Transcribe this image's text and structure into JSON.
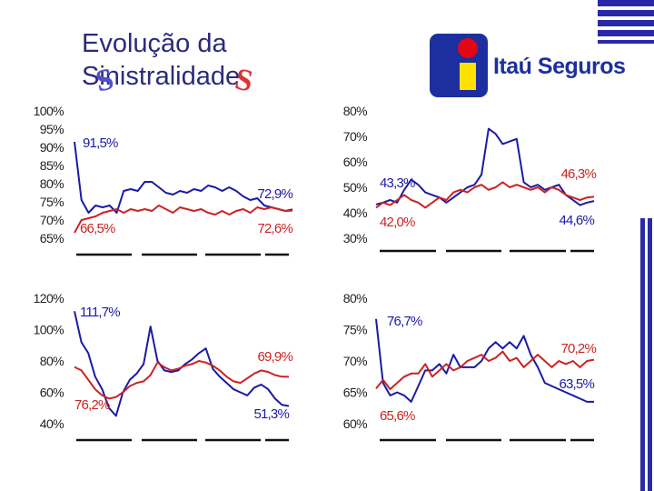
{
  "title": {
    "line1": "Evolução da",
    "line2": "Sinistralidade"
  },
  "logo": {
    "text": "Itaú Seguros"
  },
  "colors": {
    "title": "#2b2b7a",
    "blue_series": "#1a1aa6",
    "red_series": "#cc2222",
    "deco_blue": "#4f4fd1",
    "deco_red": "#e03333",
    "logo_blue": "#1d2f9e",
    "logo_red": "#e30613",
    "logo_yellow": "#ffe100",
    "corner_blue": "#2929a8"
  },
  "chart_data": [
    {
      "type": "line",
      "ylim": [
        65,
        100
      ],
      "yticks": [
        "100%",
        "95%",
        "90%",
        "85%",
        "80%",
        "75%",
        "70%",
        "65%"
      ],
      "series": [
        {
          "color": "blue",
          "values": [
            91.5,
            75.5,
            72,
            74,
            73.5,
            74,
            72,
            78,
            78.5,
            78,
            80.5,
            80.5,
            79,
            77.5,
            77,
            78,
            77.5,
            78.5,
            78,
            79.5,
            79,
            78,
            79,
            78,
            76.5,
            75.5,
            76,
            74,
            73.5,
            73,
            72.5,
            72.9
          ]
        },
        {
          "color": "red",
          "values": [
            66.5,
            70,
            70.5,
            71,
            72,
            72.5,
            73,
            72,
            73,
            72.5,
            73,
            72.5,
            74,
            73,
            72,
            73.5,
            73,
            72.5,
            73,
            72,
            71.5,
            72.5,
            71.5,
            72.5,
            73,
            72,
            73.5,
            73,
            73.5,
            73,
            72.5,
            72.6
          ]
        }
      ],
      "annotations": [
        {
          "text": "91,5%",
          "color": "blue"
        },
        {
          "text": "72,9%",
          "color": "blue"
        },
        {
          "text": "66,5%",
          "color": "red"
        },
        {
          "text": "72,6%",
          "color": "red"
        }
      ]
    },
    {
      "type": "line",
      "ylim": [
        30,
        80
      ],
      "yticks": [
        "80%",
        "70%",
        "60%",
        "50%",
        "40%",
        "30%"
      ],
      "series": [
        {
          "color": "blue",
          "values": [
            43.3,
            44,
            45,
            44,
            49,
            53,
            51,
            48,
            47,
            46,
            44,
            46,
            48,
            50,
            51,
            55,
            73,
            71,
            67,
            68,
            69,
            52,
            50,
            51,
            49,
            50,
            51,
            47,
            45,
            43,
            44,
            44.6
          ]
        },
        {
          "color": "red",
          "values": [
            42,
            44,
            43,
            45,
            47,
            45,
            44,
            42,
            44,
            46,
            45,
            48,
            49,
            48,
            50,
            51,
            49,
            50,
            52,
            50,
            51,
            50,
            49,
            50,
            48,
            50,
            49,
            47,
            46,
            45,
            46,
            46.3
          ]
        }
      ],
      "annotations": [
        {
          "text": "43,3%",
          "color": "blue"
        },
        {
          "text": "44,6%",
          "color": "blue"
        },
        {
          "text": "42,0%",
          "color": "red"
        },
        {
          "text": "46,3%",
          "color": "red"
        }
      ]
    },
    {
      "type": "line",
      "ylim": [
        40,
        120
      ],
      "yticks": [
        "120%",
        "100%",
        "80%",
        "60%",
        "40%"
      ],
      "series": [
        {
          "color": "blue",
          "values": [
            111.7,
            92,
            85,
            70,
            62,
            50,
            45,
            60,
            68,
            72,
            78,
            102,
            80,
            74,
            73,
            74,
            78,
            81,
            85,
            88,
            75,
            70,
            66,
            62,
            60,
            58,
            63,
            65,
            62,
            56,
            52,
            51.3
          ]
        },
        {
          "color": "red",
          "values": [
            76.2,
            74,
            68,
            62,
            58,
            56,
            57,
            60,
            64,
            66,
            67,
            71,
            79,
            76,
            74,
            75,
            77,
            78,
            80,
            79,
            77,
            74,
            70,
            67,
            66,
            69,
            72,
            74,
            73,
            71,
            70,
            69.9
          ]
        }
      ],
      "annotations": [
        {
          "text": "111,7%",
          "color": "blue"
        },
        {
          "text": "51,3%",
          "color": "blue"
        },
        {
          "text": "76,2%",
          "color": "red"
        },
        {
          "text": "69,9%",
          "color": "red"
        }
      ]
    },
    {
      "type": "line",
      "ylim": [
        60,
        80
      ],
      "yticks": [
        "80%",
        "75%",
        "70%",
        "65%",
        "60%"
      ],
      "series": [
        {
          "color": "blue",
          "values": [
            76.7,
            66.5,
            64.5,
            65,
            64.5,
            63.5,
            66,
            68.5,
            68.5,
            69.5,
            68,
            71,
            69,
            69,
            69,
            70,
            72,
            73,
            72,
            73,
            72,
            74,
            71,
            69,
            66.5,
            66,
            65.5,
            65,
            64.5,
            64,
            63.5,
            63.5
          ]
        },
        {
          "color": "red",
          "values": [
            65.6,
            67,
            65.5,
            66.5,
            67.5,
            68,
            68,
            69.5,
            67.5,
            68.5,
            69.5,
            68.5,
            69,
            70,
            70.5,
            71,
            70,
            70.5,
            71.5,
            70,
            70.5,
            69,
            70,
            71,
            70,
            69,
            70,
            69.5,
            70,
            69,
            70,
            70.2
          ]
        }
      ],
      "annotations": [
        {
          "text": "76,7%",
          "color": "blue"
        },
        {
          "text": "63,5%",
          "color": "blue"
        },
        {
          "text": "65,6%",
          "color": "red"
        },
        {
          "text": "70,2%",
          "color": "red"
        }
      ]
    }
  ]
}
